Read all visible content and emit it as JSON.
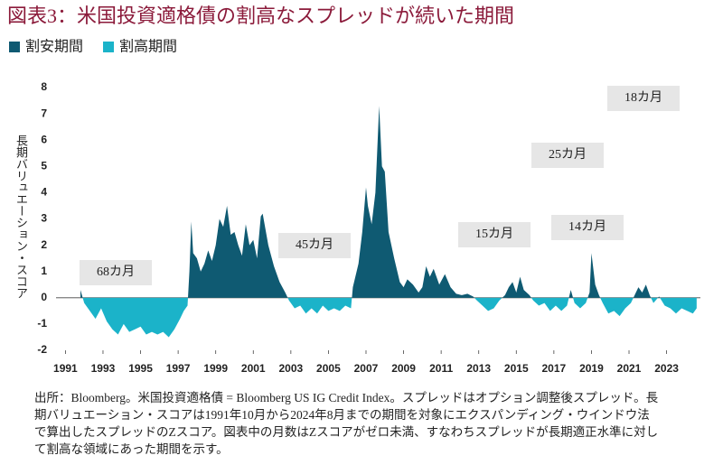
{
  "chart_data": {
    "type": "area",
    "title": "図表3：米国投資適格債の割高なスプレッドが続いた期間",
    "y_label": "長期バリュエーション・スコア",
    "series": [
      {
        "name": "割安期間",
        "color": "#0f5a72"
      },
      {
        "name": "割高期間",
        "color": "#1bb3c9"
      }
    ],
    "x": [
      1991.8,
      1992.0,
      1992.3,
      1992.6,
      1992.9,
      1993.2,
      1993.5,
      1993.8,
      1994.1,
      1994.4,
      1994.7,
      1995.0,
      1995.3,
      1995.6,
      1995.9,
      1996.2,
      1996.5,
      1996.8,
      1997.1,
      1997.3,
      1997.5,
      1997.6,
      1997.7,
      1997.8,
      1998.0,
      1998.2,
      1998.4,
      1998.6,
      1998.8,
      1999.0,
      1999.2,
      1999.4,
      1999.6,
      1999.8,
      2000.0,
      2000.2,
      2000.4,
      2000.6,
      2000.8,
      2001.0,
      2001.2,
      2001.4,
      2001.5,
      2001.8,
      2002.1,
      2002.4,
      2002.7,
      2002.9,
      2003.2,
      2003.5,
      2003.8,
      2004.1,
      2004.4,
      2004.7,
      2005.0,
      2005.3,
      2005.6,
      2005.9,
      2006.2,
      2006.3,
      2006.6,
      2006.8,
      2007.0,
      2007.1,
      2007.3,
      2007.5,
      2007.7,
      2007.85,
      2008.0,
      2008.2,
      2008.5,
      2008.8,
      2009.0,
      2009.2,
      2009.5,
      2009.8,
      2010.0,
      2010.2,
      2010.4,
      2010.6,
      2010.9,
      2011.2,
      2011.5,
      2011.8,
      2012.1,
      2012.4,
      2012.7,
      2012.9,
      2013.2,
      2013.5,
      2013.8,
      2014.1,
      2014.4,
      2014.6,
      2014.8,
      2015.0,
      2015.2,
      2015.4,
      2015.7,
      2015.9,
      2016.2,
      2016.5,
      2016.8,
      2017.1,
      2017.4,
      2017.7,
      2017.9,
      2018.1,
      2018.4,
      2018.7,
      2018.9,
      2019.0,
      2019.2,
      2019.4,
      2019.6,
      2019.9,
      2020.2,
      2020.5,
      2020.8,
      2021.1,
      2021.3,
      2021.5,
      2021.7,
      2021.9,
      2022.1,
      2022.3,
      2022.6,
      2022.9,
      2023.2,
      2023.5,
      2023.8,
      2024.1,
      2024.4,
      2024.6
    ],
    "values": [
      0.3,
      -0.2,
      -0.5,
      -0.8,
      -0.4,
      -0.9,
      -1.2,
      -1.4,
      -1.0,
      -1.3,
      -1.2,
      -1.1,
      -1.4,
      -1.3,
      -1.4,
      -1.3,
      -1.5,
      -1.2,
      -0.8,
      -0.5,
      -0.3,
      1.0,
      2.9,
      1.7,
      1.5,
      1.0,
      1.3,
      1.8,
      1.4,
      2.0,
      3.0,
      2.7,
      3.5,
      2.4,
      2.5,
      2.0,
      1.6,
      2.8,
      2.0,
      2.2,
      1.5,
      3.1,
      3.2,
      2.0,
      1.2,
      0.6,
      0.2,
      -0.1,
      -0.4,
      -0.3,
      -0.6,
      -0.4,
      -0.6,
      -0.3,
      -0.5,
      -0.4,
      -0.5,
      -0.3,
      -0.4,
      0.4,
      1.3,
      2.5,
      4.2,
      3.5,
      2.8,
      4.0,
      7.3,
      5.0,
      4.8,
      2.5,
      1.5,
      0.6,
      0.4,
      0.7,
      0.5,
      0.2,
      0.4,
      1.2,
      0.8,
      1.1,
      0.5,
      0.9,
      0.4,
      0.15,
      0.1,
      0.15,
      0.05,
      -0.1,
      -0.3,
      -0.5,
      -0.4,
      -0.1,
      0.1,
      0.4,
      0.6,
      0.2,
      0.8,
      0.3,
      0.1,
      -0.1,
      -0.3,
      -0.2,
      -0.5,
      -0.3,
      -0.5,
      -0.3,
      0.3,
      -0.2,
      -0.4,
      -0.2,
      0.2,
      1.7,
      0.5,
      0.1,
      -0.2,
      -0.6,
      -0.5,
      -0.7,
      -0.4,
      -0.2,
      0.1,
      0.4,
      0.2,
      0.5,
      0.1,
      -0.2,
      0.05,
      -0.3,
      -0.4,
      -0.6,
      -0.4,
      -0.5,
      -0.6,
      -0.4
    ],
    "xlim": [
      1990.5,
      2024.8
    ],
    "xticks": [
      1991,
      1993,
      1995,
      1997,
      1999,
      2001,
      2003,
      2005,
      2007,
      2009,
      2011,
      2013,
      2015,
      2017,
      2019,
      2021,
      2023
    ],
    "ylim": [
      -2,
      8
    ],
    "yticks": [
      -2,
      -1,
      0,
      1,
      2,
      3,
      4,
      5,
      6,
      7,
      8
    ],
    "annotations": [
      "68カ月",
      "45カ月",
      "15カ月",
      "14カ月",
      "25カ月",
      "18カ月"
    ],
    "footnote": [
      "出所：Bloomberg。米国投資適格債 = Bloomberg US IG Credit Index。スプレッドはオプション調整後スプレッド。長",
      "期バリュエーション・スコアは1991年10月から2024年8月までの期間を対象にエクスパンディング・ウインドウ法",
      "で算出したスプレッドのZスコア。図表中の月数はZスコアがゼロ未満、すなわちスプレッドが長期適正水準に対し",
      "て割高な領域にあった期間を示す。"
    ]
  }
}
